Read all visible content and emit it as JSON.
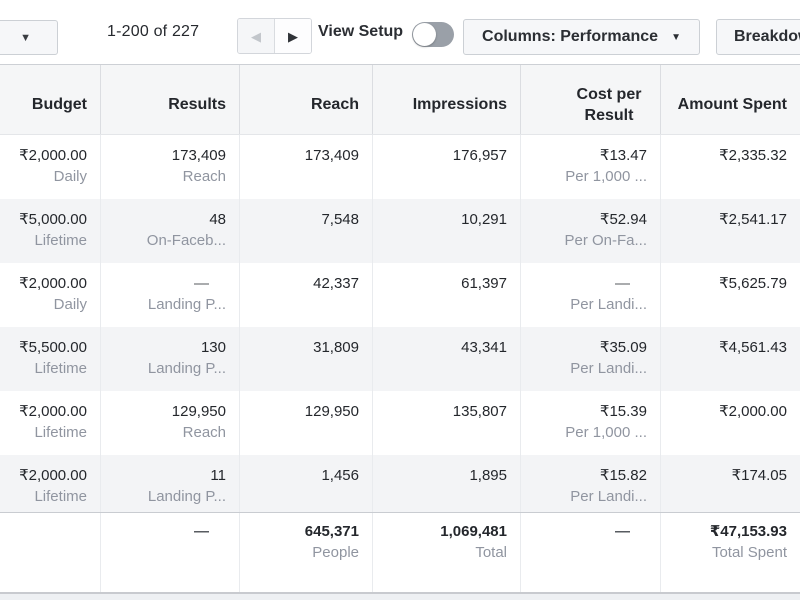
{
  "toolbar": {
    "range_text": "1-200 of 227",
    "view_setup_label": "View Setup",
    "view_setup_toggle_state": "off",
    "columns_label": "Columns: Performance",
    "breakdown_label": "Breakdown"
  },
  "icons": {
    "dropdown_caret": "▼",
    "prev_arrow": "◀",
    "next_arrow": "▶"
  },
  "colors": {
    "header_bg": "#f5f6f7",
    "alt_row_bg": "#f3f4f6",
    "text_primary": "#24272c",
    "text_secondary": "#9095a0",
    "toggle_track_off": "#9aa0a8"
  },
  "table": {
    "headers": [
      "Budget",
      "Results",
      "Reach",
      "Impressions",
      "Cost per Result",
      "Amount Spent"
    ],
    "rows": [
      {
        "budget": "₹2,000.00",
        "budget_sub": "Daily",
        "results": "173,409",
        "results_sub": "Reach",
        "reach": "173,409",
        "impressions": "176,957",
        "cost": "₹13.47",
        "cost_sub": "Per 1,000 ...",
        "spent": "₹2,335.32"
      },
      {
        "budget": "₹5,000.00",
        "budget_sub": "Lifetime",
        "results": "48",
        "results_sub": "On-Faceb...",
        "reach": "7,548",
        "impressions": "10,291",
        "cost": "₹52.94",
        "cost_sub": "Per On-Fa...",
        "spent": "₹2,541.17"
      },
      {
        "budget": "₹2,000.00",
        "budget_sub": "Daily",
        "results": "—",
        "results_sub": "Landing P...",
        "reach": "42,337",
        "impressions": "61,397",
        "cost": "—",
        "cost_sub": "Per Landi...",
        "spent": "₹5,625.79"
      },
      {
        "budget": "₹5,500.00",
        "budget_sub": "Lifetime",
        "results": "130",
        "results_sub": "Landing P...",
        "reach": "31,809",
        "impressions": "43,341",
        "cost": "₹35.09",
        "cost_sub": "Per Landi...",
        "spent": "₹4,561.43"
      },
      {
        "budget": "₹2,000.00",
        "budget_sub": "Lifetime",
        "results": "129,950",
        "results_sub": "Reach",
        "reach": "129,950",
        "impressions": "135,807",
        "cost": "₹15.39",
        "cost_sub": "Per 1,000 ...",
        "spent": "₹2,000.00"
      },
      {
        "budget": "₹2,000.00",
        "budget_sub": "Lifetime",
        "results": "11",
        "results_sub": "Landing P...",
        "reach": "1,456",
        "impressions": "1,895",
        "cost": "₹15.82",
        "cost_sub": "Per Landi...",
        "spent": "₹174.05"
      }
    ],
    "totals": {
      "results": "—",
      "reach": "645,371",
      "reach_sub": "People",
      "impressions": "1,069,481",
      "impressions_sub": "Total",
      "cost": "—",
      "spent": "₹47,153.93",
      "spent_sub": "Total Spent"
    }
  }
}
